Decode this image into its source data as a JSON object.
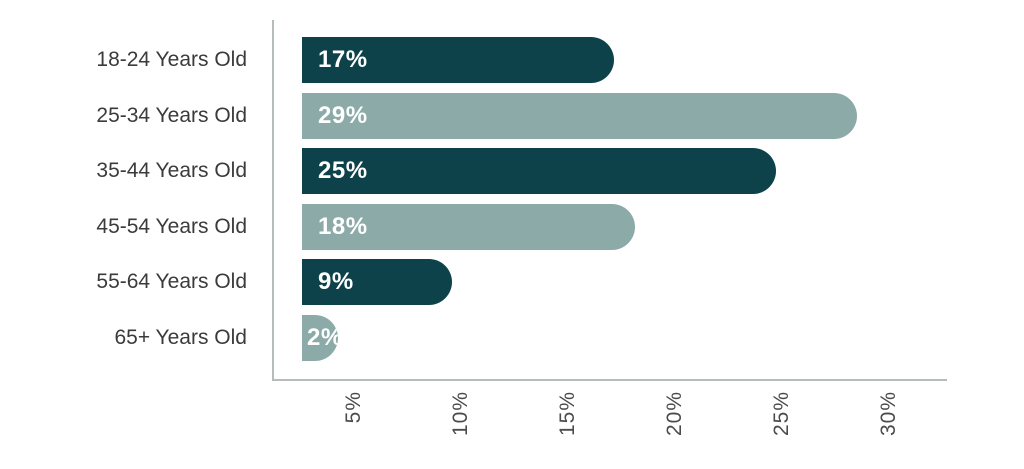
{
  "chart_data": {
    "type": "bar",
    "orientation": "horizontal",
    "title": "",
    "xlabel": "",
    "ylabel": "",
    "categories": [
      "18-24 Years Old",
      "25-34 Years Old",
      "35-44 Years Old",
      "45-54 Years Old",
      "55-64 Years Old",
      "65+ Years Old"
    ],
    "values": [
      17,
      29,
      25,
      18,
      9,
      2
    ],
    "value_labels": [
      "17%",
      "29%",
      "25%",
      "18%",
      "9%",
      "2%"
    ],
    "bar_color_sequence": [
      "dark_teal",
      "sage",
      "dark_teal",
      "sage",
      "dark_teal",
      "sage"
    ],
    "x_tick_labels": [
      "5%",
      "10%",
      "15%",
      "20%",
      "25%",
      "30%"
    ],
    "x_tick_values": [
      5,
      10,
      15,
      20,
      25,
      30
    ],
    "xlim": [
      0,
      31
    ],
    "grid": false,
    "legend_position": null,
    "colors": {
      "dark_teal": "#0d424a",
      "sage": "#8caba8",
      "category_text": "#3b3b3b",
      "tick_text": "#4b4b4b",
      "axis_line": "#b6bbbb",
      "value_text": "#ffffff",
      "background": "#ffffff"
    }
  }
}
